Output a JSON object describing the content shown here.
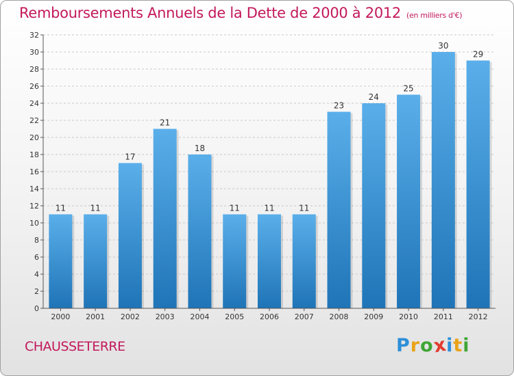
{
  "title": "Remboursements Annuels de la Dette de 2000 à 2012",
  "subtitle": "(en milliers d'€)",
  "commune": "CHAUSSETERRE",
  "logo": {
    "letters": [
      "P",
      "r",
      "o",
      "x",
      "i",
      "t",
      "i"
    ],
    "colors": [
      "#2e8fd8",
      "#e8a317",
      "#3fa535",
      "#e23b2f",
      "#2e8fd8",
      "#e8a317",
      "#3fa535"
    ]
  },
  "colors": {
    "bar_top": "#5aafea",
    "bar_bottom": "#1f74b7",
    "title": "#c2185b"
  },
  "chart_data": {
    "type": "bar",
    "categories": [
      "2000",
      "2001",
      "2002",
      "2003",
      "2004",
      "2005",
      "2006",
      "2007",
      "2008",
      "2009",
      "2010",
      "2011",
      "2012"
    ],
    "values": [
      11,
      11,
      17,
      21,
      18,
      11,
      11,
      11,
      23,
      24,
      25,
      30,
      29
    ],
    "ylim": [
      0,
      32
    ],
    "yticks": [
      0,
      2,
      4,
      6,
      8,
      10,
      12,
      14,
      16,
      18,
      20,
      22,
      24,
      26,
      28,
      30,
      32
    ],
    "grid": "horizontal dashed",
    "data_labels": true
  }
}
